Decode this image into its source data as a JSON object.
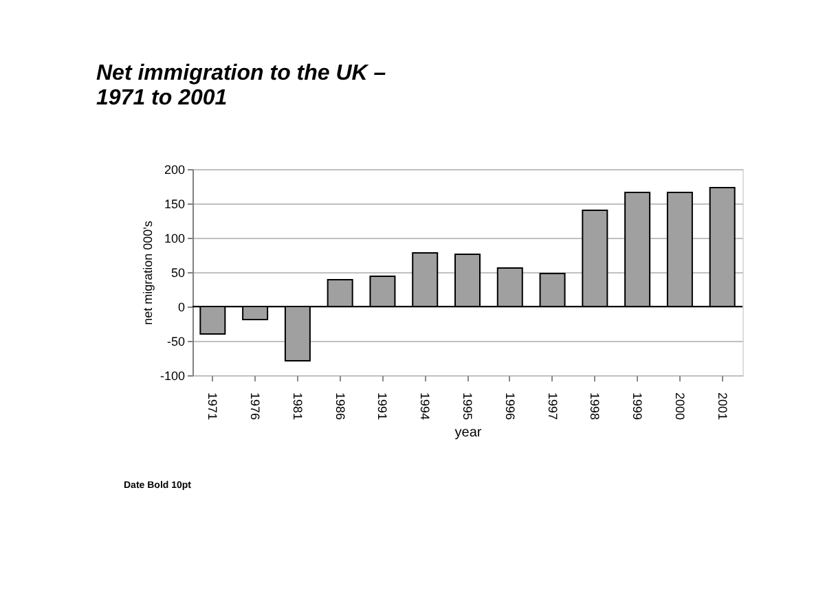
{
  "chart_data": {
    "type": "bar",
    "title": [
      "Net immigration to the UK –",
      "1971 to 2001"
    ],
    "xlabel": "year",
    "ylabel": "net migration 000's",
    "categories": [
      "1971",
      "1976",
      "1981",
      "1986",
      "1991",
      "1994",
      "1995",
      "1996",
      "1997",
      "1998",
      "1999",
      "2000",
      "2001"
    ],
    "values": [
      -40,
      -19,
      -79,
      39,
      44,
      78,
      76,
      56,
      48,
      140,
      166,
      166,
      173
    ],
    "color": "#a0a0a0",
    "ylim": [
      -100,
      200
    ],
    "yticks": [
      -100,
      -50,
      0,
      50,
      100,
      150,
      200
    ],
    "grid": "y",
    "annotations": [
      "Date Bold 10pt"
    ]
  }
}
